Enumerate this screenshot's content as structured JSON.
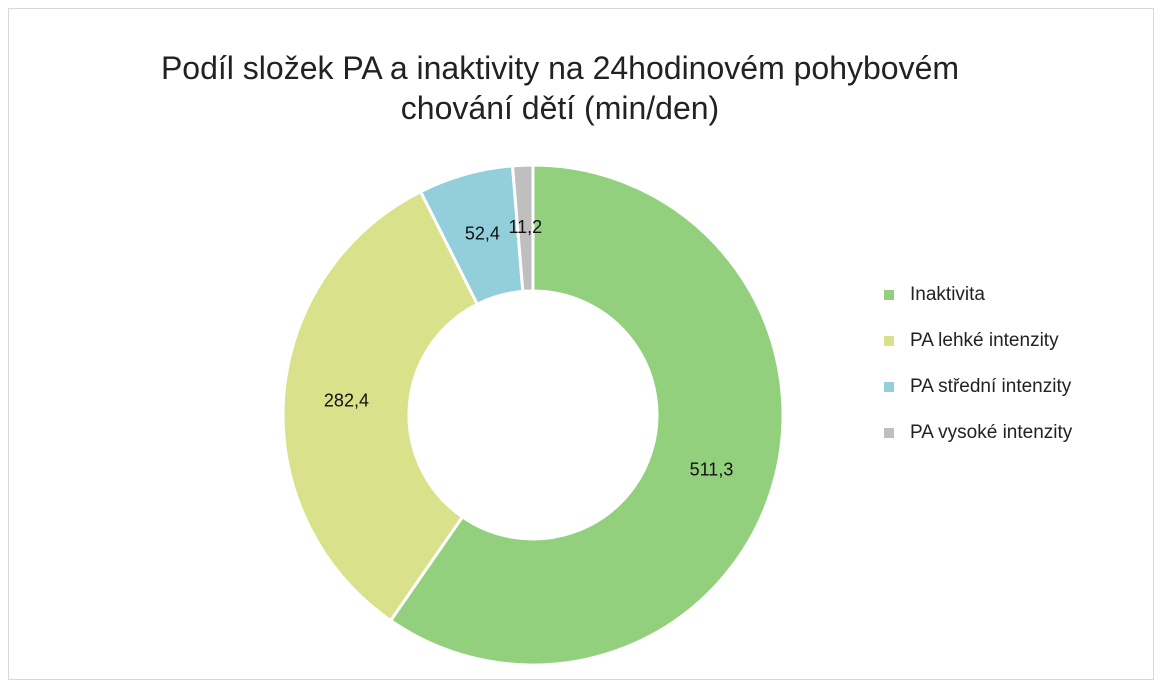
{
  "chart_data": {
    "type": "donut",
    "title": "Podíl složek PA a inaktivity na 24hodinovém pohybovém chování dětí (min/den)",
    "categories": [
      "Inaktivita",
      "PA lehké intenzity",
      "PA střední intenzity",
      "PA vysoké intenzity"
    ],
    "values": [
      511.3,
      282.4,
      52.4,
      11.2
    ],
    "value_labels": [
      "511,3",
      "282,4",
      "52,4",
      "11,2"
    ],
    "colors": [
      "#92d07e",
      "#d9e18a",
      "#92cfdb",
      "#bfbfbf"
    ],
    "legend": "right"
  }
}
